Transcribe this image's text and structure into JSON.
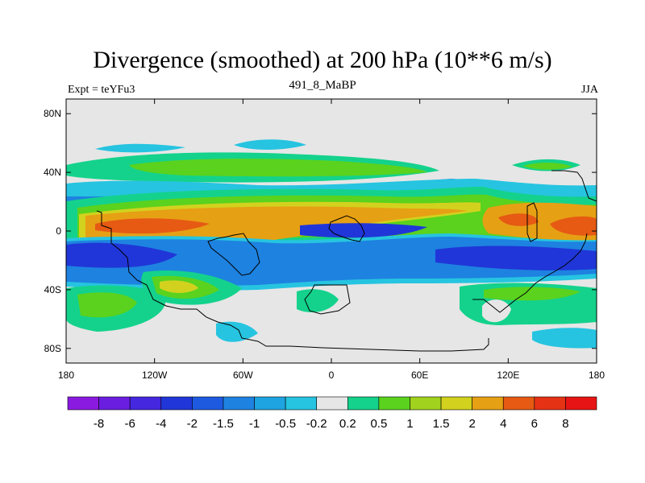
{
  "chart_data": {
    "type": "heatmap",
    "title": "Divergence (smoothed) at 200 hPa (10**6 m/s)",
    "subtitle_left": "Expt = teYFu3",
    "subtitle_center": "491_8_MaBP",
    "subtitle_right": "JJA",
    "xaxis": {
      "range": [
        -180,
        180
      ],
      "ticks": [
        -180,
        -120,
        -60,
        0,
        60,
        120,
        180
      ],
      "tick_labels": [
        "180",
        "120W",
        "60W",
        "0",
        "60E",
        "120E",
        "180"
      ]
    },
    "yaxis": {
      "range": [
        -90,
        90
      ],
      "ticks": [
        80,
        40,
        0,
        -40,
        -80
      ],
      "tick_labels": [
        "80N",
        "40N",
        "0",
        "40S",
        "80S"
      ]
    },
    "colorbar": {
      "labels": [
        "-8",
        "-6",
        "-4",
        "-2",
        "-1.5",
        "-1",
        "-0.5",
        "-0.2",
        "0.2",
        "0.5",
        "1",
        "1.5",
        "2",
        "4",
        "6",
        "8"
      ],
      "colors": [
        "#8b1ae0",
        "#6a1ee0",
        "#4527e0",
        "#2036d8",
        "#1e5ae0",
        "#1e82e0",
        "#1ea4e0",
        "#26c4e0",
        "#e6e6e6",
        "#14d28c",
        "#5ad21e",
        "#a0d21e",
        "#d2d21e",
        "#e6a014",
        "#e65a14",
        "#e63214",
        "#e61414"
      ]
    },
    "field_bands": [
      {
        "name": "northern-cyan-band",
        "level": -0.5,
        "lat_range": [
          42,
          58
        ]
      },
      {
        "name": "northern-green-band",
        "level": 0.5,
        "lat_range": [
          28,
          45
        ]
      },
      {
        "name": "subtropical-blue-band",
        "level": -1.5,
        "lat_range": [
          15,
          28
        ]
      },
      {
        "name": "tropical-positive-band",
        "level": 2,
        "lat_range": [
          -2,
          18
        ]
      },
      {
        "name": "equatorial-negative-band",
        "level": -2,
        "lat_range": [
          -28,
          -2
        ]
      },
      {
        "name": "southern-green-band",
        "level": 0.5,
        "lat_range": [
          -55,
          -30
        ]
      },
      {
        "name": "southern-cyan-band",
        "level": -0.5,
        "lat_range": [
          -80,
          -55
        ]
      }
    ]
  }
}
